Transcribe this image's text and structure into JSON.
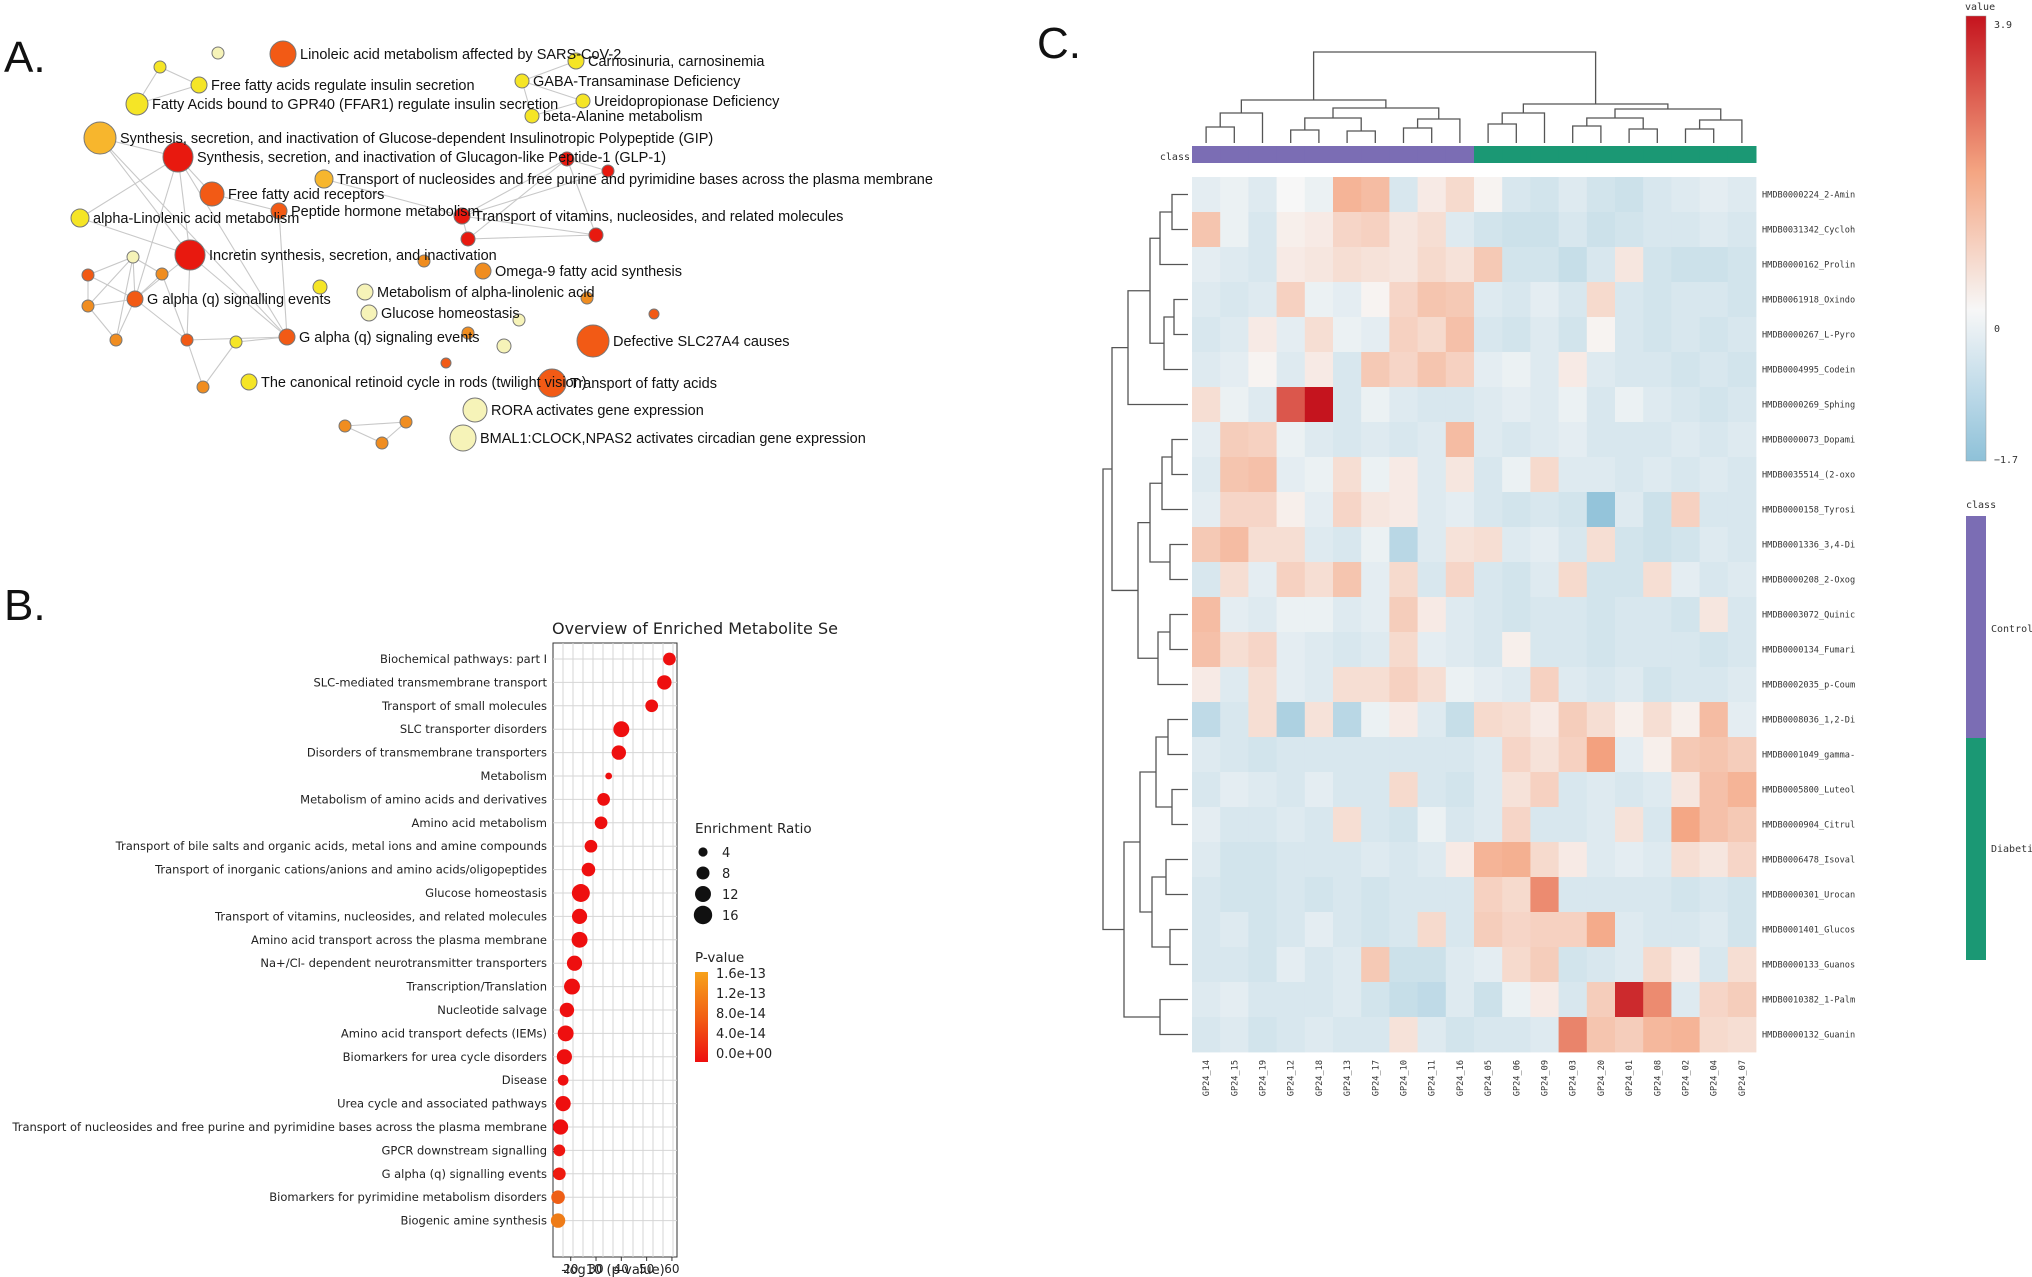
{
  "panels": {
    "a": "A.",
    "b": "B.",
    "c": "C."
  },
  "colors": {
    "red": "#e8190f",
    "orange_red": "#f25a15",
    "orange": "#f08d20",
    "yellow_orange": "#f7b62d",
    "yellow": "#f5e526",
    "pale": "#f6f3b8",
    "edge": "#c8c8c8",
    "heat_high": "#c5141e",
    "heat_low": "#8ec1d8",
    "class_control": "#7b6db4",
    "class_diabetic": "#1b9874"
  },
  "chart_data": [
    {
      "type": "network",
      "panel": "A",
      "nodes": [
        {
          "id": "n1",
          "label": "Linoleic acid metabolism affected by SARS-CoV-2",
          "color": "orange_red"
        },
        {
          "id": "n2",
          "label": "Free fatty acids regulate insulin secretion",
          "color": "yellow"
        },
        {
          "id": "n3",
          "label": "Fatty Acids bound to GPR40 (FFAR1) regulate insulin secretion",
          "color": "yellow"
        },
        {
          "id": "n4",
          "label": "Synthesis, secretion, and inactivation of Glucose-dependent Insulinotropic Polypeptide (GIP)",
          "color": "yellow_orange"
        },
        {
          "id": "n5",
          "label": "Synthesis, secretion, and inactivation of Glucagon-like Peptide-1 (GLP-1)",
          "color": "red"
        },
        {
          "id": "n6",
          "label": "Free fatty acid receptors",
          "color": "orange_red"
        },
        {
          "id": "n7",
          "label": "Peptide hormone metabolism",
          "color": "orange_red"
        },
        {
          "id": "n8",
          "label": "alpha-Linolenic acid metabolism",
          "color": "yellow"
        },
        {
          "id": "n9",
          "label": "Incretin synthesis, secretion, and inactivation",
          "color": "red"
        },
        {
          "id": "n10",
          "label": "G alpha (q) signalling events",
          "color": "orange_red"
        },
        {
          "id": "n11",
          "label": "G alpha (q) signaling events",
          "color": "orange_red"
        },
        {
          "id": "n12",
          "label": "The canonical retinoid cycle in rods (twilight vision)",
          "color": "yellow"
        },
        {
          "id": "n13",
          "label": "Carnosinuria, carnosinemia",
          "color": "yellow"
        },
        {
          "id": "n14",
          "label": "GABA-Transaminase Deficiency",
          "color": "yellow"
        },
        {
          "id": "n15",
          "label": "Ureidopropionase Deficiency",
          "color": "yellow"
        },
        {
          "id": "n16",
          "label": "beta-Alanine metabolism",
          "color": "yellow"
        },
        {
          "id": "n17",
          "label": "Transport of nucleosides and free purine and pyrimidine bases across the plasma membrane",
          "color": "yellow_orange"
        },
        {
          "id": "n18",
          "label": "Transport of vitamins, nucleosides, and related molecules",
          "color": "red"
        },
        {
          "id": "n19",
          "label": "Omega-9 fatty acid synthesis",
          "color": "orange"
        },
        {
          "id": "n20",
          "label": "Metabolism of alpha-linolenic acid",
          "color": "pale"
        },
        {
          "id": "n21",
          "label": "Glucose homeostasis",
          "color": "pale"
        },
        {
          "id": "n22",
          "label": "Defective SLC27A4 causes",
          "color": "orange_red"
        },
        {
          "id": "n23",
          "label": "Transport of fatty acids",
          "color": "orange_red"
        },
        {
          "id": "n24",
          "label": "RORA activates gene expression",
          "color": "pale"
        },
        {
          "id": "n25",
          "label": "BMAL1:CLOCK,NPAS2 activates circadian gene expression",
          "color": "pale"
        }
      ]
    },
    {
      "type": "scatter",
      "panel": "B",
      "title": "Overview of Enriched Metabolite Se",
      "xlabel": "-log10 (p-value)",
      "xlim": [
        13,
        62
      ],
      "xticks": [
        20,
        30,
        40,
        50,
        60
      ],
      "categories": [
        "Biochemical pathways: part I",
        "SLC-mediated transmembrane transport",
        "Transport of small molecules",
        "SLC transporter disorders",
        "Disorders of transmembrane transporters",
        "Metabolism",
        "Metabolism of amino acids and derivatives",
        "Amino acid metabolism",
        "Transport of bile salts and organic acids, metal ions and amine compounds",
        "Transport of inorganic cations/anions and amino acids/oligopeptides",
        "Glucose homeostasis",
        "Transport of vitamins, nucleosides, and related molecules",
        "Amino acid transport across the plasma membrane",
        "Na+/Cl- dependent neurotransmitter transporters",
        "Transcription/Translation",
        "Nucleotide salvage",
        "Amino acid transport defects (IEMs)",
        "Biomarkers for urea cycle disorders",
        "Disease",
        "Urea cycle and associated pathways",
        "Transport of nucleosides and free purine and pyrimidine bases across the plasma membrane",
        "GPCR downstream signalling",
        "G alpha (q) signalling events",
        "Biomarkers for pyrimidine metabolism disorders",
        "Biogenic amine synthesis"
      ],
      "x": [
        59,
        57,
        52,
        40,
        39,
        35,
        33,
        32,
        28,
        27,
        24,
        23.5,
        23.5,
        21.5,
        20.5,
        18.5,
        18,
        17.5,
        17,
        17,
        16,
        15.5,
        15.5,
        15,
        15
      ],
      "enrichment_ratio": [
        7,
        9,
        7,
        11,
        9,
        2,
        7,
        7,
        7,
        8,
        14,
        10,
        11,
        10,
        11,
        9,
        11,
        10,
        5,
        10,
        10,
        6,
        7,
        8,
        9
      ],
      "p_value_norm": [
        0,
        0,
        0,
        0,
        0,
        0,
        0,
        0,
        0,
        0,
        0,
        0,
        0,
        0,
        0,
        0,
        0,
        0,
        0,
        0,
        0,
        0.05,
        0.08,
        0.55,
        0.75
      ],
      "size_legend": {
        "title": "Enrichment Ratio",
        "values": [
          4,
          8,
          12,
          16
        ]
      },
      "color_legend": {
        "title": "P-value",
        "labels": [
          "1.6e-13",
          "1.2e-13",
          "8.0e-14",
          "4.0e-14",
          "0.0e+00"
        ]
      }
    },
    {
      "type": "heatmap",
      "panel": "C",
      "value_range": [
        -1.7,
        3.9
      ],
      "colorbar": {
        "title": "value",
        "max_label": "3.9",
        "zero_label": "0",
        "min_label": "−1.7"
      },
      "class_legend": {
        "title": "class",
        "classes": [
          "Control",
          "Diabetic"
        ]
      },
      "class_track_label": "class",
      "columns": [
        "GP24_14",
        "GP24_15",
        "GP24_19",
        "GP24_12",
        "GP24_18",
        "GP24_13",
        "GP24_17",
        "GP24_10",
        "GP24_11",
        "GP24_16",
        "GP24_05",
        "GP24_06",
        "GP24_09",
        "GP24_03",
        "GP24_20",
        "GP24_01",
        "GP24_08",
        "GP24_02",
        "GP24_04",
        "GP24_07"
      ],
      "column_classes": [
        "Control",
        "Control",
        "Control",
        "Control",
        "Control",
        "Control",
        "Control",
        "Control",
        "Control",
        "Control",
        "Diabetic",
        "Diabetic",
        "Diabetic",
        "Diabetic",
        "Diabetic",
        "Diabetic",
        "Diabetic",
        "Diabetic",
        "Diabetic",
        "Diabetic"
      ],
      "rows": [
        "HMDB0000224_2-Amin",
        "HMDB0031342_Cycloh",
        "HMDB0000162_Prolin",
        "HMDB0061918_Oxindo",
        "HMDB0000267_L-Pyro",
        "HMDB0004995_Codein",
        "HMDB0000269_Sphing",
        "HMDB0000073_Dopami",
        "HMDB0035514_(2-oxo",
        "HMDB0000158_Tyrosi",
        "HMDB0001336_3,4-Di",
        "HMDB0000208_2-Oxog",
        "HMDB0003072_Quinic",
        "HMDB0000134_Fumari",
        "HMDB0002035_p-Coum",
        "HMDB0008036_1,2-Di",
        "HMDB0001049_gamma-",
        "HMDB0005800_Luteol",
        "HMDB0000904_Citrul",
        "HMDB0006478_Isoval",
        "HMDB0000301_Urocan",
        "HMDB0001401_Glucos",
        "HMDB0000133_Guanos",
        "HMDB0010382_1-Palm",
        "HMDB0000132_Guanin"
      ],
      "values": [
        [
          -0.3,
          -0.2,
          -0.4,
          0.0,
          -0.2,
          1.6,
          1.4,
          -0.5,
          0.3,
          0.7,
          0.1,
          -0.5,
          -0.6,
          -0.4,
          -0.6,
          -0.7,
          -0.5,
          -0.4,
          -0.3,
          -0.4
        ],
        [
          1.2,
          -0.2,
          -0.5,
          0.2,
          0.3,
          0.8,
          0.9,
          0.4,
          0.6,
          -0.4,
          -0.6,
          -0.7,
          -0.7,
          -0.5,
          -0.7,
          -0.6,
          -0.5,
          -0.5,
          -0.4,
          -0.5
        ],
        [
          -0.3,
          -0.4,
          -0.5,
          0.3,
          0.4,
          0.6,
          0.5,
          0.4,
          0.7,
          0.5,
          1.1,
          -0.6,
          -0.6,
          -0.8,
          -0.5,
          0.4,
          -0.6,
          -0.7,
          -0.7,
          -0.6
        ],
        [
          -0.4,
          -0.5,
          -0.4,
          0.9,
          -0.2,
          -0.3,
          0.1,
          0.8,
          1.2,
          1.1,
          -0.4,
          -0.5,
          -0.3,
          -0.5,
          0.7,
          -0.5,
          -0.6,
          -0.5,
          -0.5,
          -0.6
        ],
        [
          -0.5,
          -0.4,
          0.3,
          -0.3,
          0.6,
          -0.2,
          -0.3,
          0.9,
          0.7,
          1.3,
          -0.5,
          -0.6,
          -0.4,
          -0.6,
          0.1,
          -0.5,
          -0.6,
          -0.5,
          -0.6,
          -0.5
        ],
        [
          -0.4,
          -0.3,
          0.1,
          -0.4,
          0.3,
          -0.5,
          1.1,
          0.8,
          1.2,
          0.9,
          -0.3,
          -0.2,
          -0.4,
          0.3,
          -0.4,
          -0.5,
          -0.5,
          -0.6,
          -0.5,
          -0.6
        ],
        [
          0.6,
          -0.2,
          -0.4,
          3.0,
          3.9,
          -0.5,
          -0.2,
          -0.4,
          -0.5,
          -0.5,
          -0.4,
          -0.3,
          -0.4,
          -0.2,
          -0.5,
          -0.2,
          -0.4,
          -0.5,
          -0.6,
          -0.5
        ],
        [
          -0.3,
          1.0,
          0.9,
          -0.2,
          -0.4,
          -0.5,
          -0.4,
          -0.5,
          -0.4,
          1.4,
          -0.4,
          -0.5,
          -0.4,
          -0.3,
          -0.5,
          -0.5,
          -0.5,
          -0.4,
          -0.5,
          -0.4
        ],
        [
          -0.4,
          1.2,
          1.3,
          -0.3,
          -0.2,
          0.6,
          -0.2,
          0.3,
          -0.4,
          0.4,
          -0.5,
          -0.2,
          0.7,
          -0.4,
          -0.4,
          -0.5,
          -0.4,
          -0.5,
          -0.4,
          -0.5
        ],
        [
          -0.3,
          0.8,
          0.8,
          0.2,
          -0.3,
          0.8,
          0.4,
          0.3,
          -0.4,
          -0.3,
          -0.5,
          -0.6,
          -0.5,
          -0.6,
          -1.6,
          -0.4,
          -0.7,
          0.9,
          -0.5,
          -0.5
        ],
        [
          1.1,
          1.4,
          0.6,
          0.6,
          -0.4,
          -0.5,
          -0.2,
          -1.0,
          -0.4,
          0.5,
          0.6,
          -0.4,
          -0.3,
          -0.5,
          0.6,
          -0.6,
          -0.7,
          -0.6,
          -0.4,
          -0.5
        ],
        [
          -0.5,
          0.6,
          -0.3,
          0.9,
          0.6,
          1.2,
          -0.3,
          0.7,
          -0.5,
          0.8,
          -0.5,
          -0.6,
          -0.4,
          0.7,
          -0.6,
          -0.6,
          0.6,
          -0.3,
          -0.5,
          -0.4
        ],
        [
          1.4,
          -0.3,
          -0.4,
          -0.2,
          -0.2,
          -0.4,
          -0.3,
          1.0,
          0.3,
          -0.4,
          -0.5,
          -0.6,
          -0.5,
          -0.5,
          -0.6,
          -0.5,
          -0.5,
          -0.6,
          0.4,
          -0.5
        ],
        [
          1.3,
          0.6,
          0.8,
          -0.3,
          -0.4,
          -0.5,
          -0.4,
          0.7,
          -0.3,
          -0.4,
          -0.5,
          0.2,
          -0.5,
          -0.5,
          -0.6,
          -0.5,
          -0.5,
          -0.5,
          -0.6,
          -0.5
        ],
        [
          0.3,
          -0.4,
          0.6,
          -0.3,
          -0.4,
          0.6,
          0.6,
          0.9,
          0.6,
          -0.2,
          -0.3,
          -0.4,
          0.9,
          -0.4,
          -0.5,
          -0.4,
          -0.6,
          -0.5,
          -0.5,
          -0.4
        ],
        [
          -0.9,
          -0.5,
          0.6,
          -1.2,
          0.5,
          -1.0,
          -0.2,
          0.3,
          -0.4,
          -0.8,
          0.7,
          0.6,
          0.3,
          1.0,
          0.6,
          0.2,
          0.6,
          0.2,
          1.4,
          -0.3
        ],
        [
          -0.4,
          -0.5,
          -0.6,
          -0.5,
          -0.5,
          -0.5,
          -0.5,
          -0.5,
          -0.5,
          -0.5,
          -0.4,
          0.8,
          0.5,
          0.9,
          2.0,
          -0.3,
          0.2,
          1.1,
          1.2,
          1.0
        ],
        [
          -0.5,
          -0.3,
          -0.4,
          -0.5,
          -0.3,
          -0.5,
          -0.5,
          0.7,
          -0.5,
          -0.6,
          -0.4,
          0.5,
          0.9,
          -0.5,
          -0.4,
          -0.5,
          -0.4,
          0.4,
          1.3,
          1.6
        ],
        [
          -0.3,
          -0.5,
          -0.5,
          -0.4,
          -0.5,
          0.6,
          -0.5,
          -0.6,
          -0.2,
          -0.5,
          -0.4,
          0.8,
          -0.5,
          -0.5,
          -0.4,
          0.5,
          -0.5,
          1.9,
          1.3,
          1.1
        ],
        [
          -0.4,
          -0.6,
          -0.6,
          -0.5,
          -0.5,
          -0.5,
          -0.4,
          -0.5,
          -0.4,
          0.3,
          1.6,
          1.7,
          0.7,
          0.3,
          -0.4,
          -0.3,
          -0.4,
          0.6,
          0.4,
          0.8
        ],
        [
          -0.5,
          -0.6,
          -0.6,
          -0.5,
          -0.6,
          -0.5,
          -0.6,
          -0.5,
          -0.5,
          -0.5,
          0.9,
          0.7,
          2.3,
          -0.5,
          -0.5,
          -0.5,
          -0.5,
          -0.6,
          -0.5,
          -0.6
        ],
        [
          -0.5,
          -0.4,
          -0.6,
          -0.5,
          -0.3,
          -0.5,
          -0.6,
          -0.5,
          0.7,
          -0.5,
          1.0,
          0.8,
          0.9,
          0.9,
          1.8,
          -0.4,
          -0.5,
          -0.5,
          -0.4,
          -0.6
        ],
        [
          -0.5,
          -0.5,
          -0.6,
          -0.3,
          -0.5,
          -0.4,
          1.1,
          -0.7,
          -0.7,
          -0.4,
          -0.3,
          0.7,
          1.0,
          -0.6,
          -0.5,
          -0.4,
          0.7,
          0.3,
          -0.5,
          0.6
        ],
        [
          -0.4,
          -0.3,
          -0.5,
          -0.5,
          -0.5,
          -0.4,
          -0.6,
          -0.8,
          -0.9,
          -0.4,
          -0.7,
          -0.2,
          0.3,
          -0.5,
          1.0,
          3.6,
          2.3,
          -0.4,
          0.8,
          1.0
        ],
        [
          -0.5,
          -0.4,
          -0.6,
          -0.5,
          -0.4,
          -0.5,
          -0.5,
          0.5,
          -0.4,
          -0.6,
          -0.5,
          -0.5,
          -0.4,
          2.4,
          1.2,
          1.0,
          1.5,
          1.6,
          0.7,
          0.6
        ]
      ]
    }
  ]
}
